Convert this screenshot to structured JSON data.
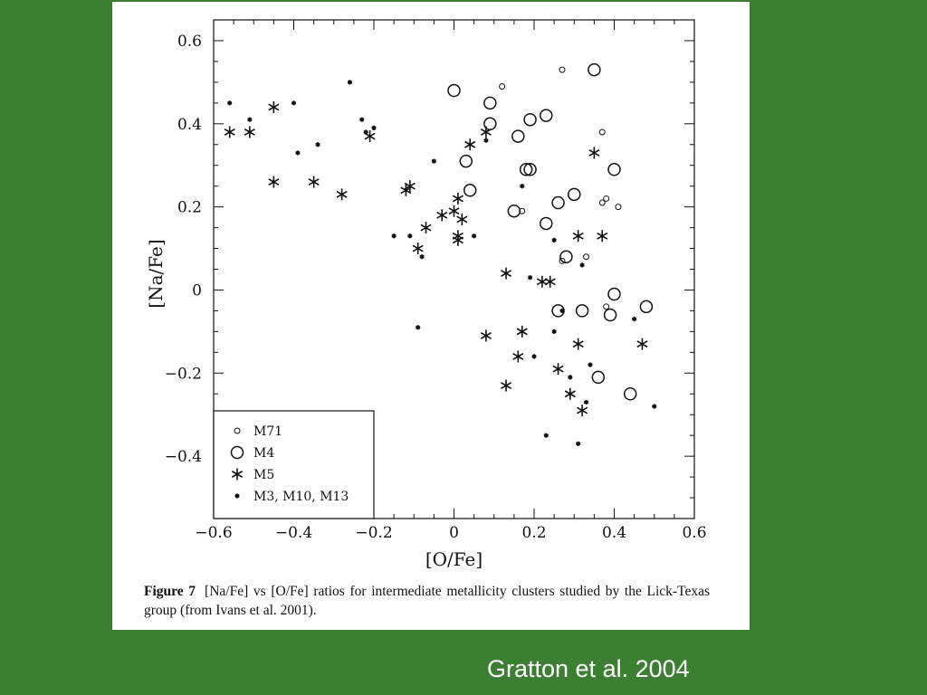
{
  "credit": "Gratton et al. 2004",
  "caption": {
    "label": "Figure 7",
    "text": "[Na/Fe] vs [O/Fe] ratios for intermediate metallicity clusters studied by the Lick-Texas group (from Ivans et al. 2001)."
  },
  "chart_data": {
    "type": "scatter",
    "title": "",
    "xlabel": "[O/Fe]",
    "ylabel": "[Na/Fe]",
    "xlim": [
      -0.6,
      0.6
    ],
    "ylim": [
      -0.55,
      0.65
    ],
    "xticks": [
      "−0.6",
      "−0.4",
      "−0.2",
      "0",
      "0.2",
      "0.4",
      "0.6"
    ],
    "yticks": [
      "−0.4",
      "−0.2",
      "0",
      "0.2",
      "0.4",
      "0.6"
    ],
    "grid": false,
    "legend_position": "bottom-left",
    "series": [
      {
        "name": "M71",
        "marker": "small-circle",
        "points": [
          [
            0.12,
            0.49
          ],
          [
            0.27,
            0.53
          ],
          [
            0.37,
            0.38
          ],
          [
            0.37,
            0.21
          ],
          [
            0.38,
            0.22
          ],
          [
            0.41,
            0.2
          ],
          [
            0.17,
            0.19
          ],
          [
            0.27,
            0.07
          ],
          [
            0.33,
            0.08
          ],
          [
            0.38,
            -0.04
          ]
        ]
      },
      {
        "name": "M4",
        "marker": "large-circle",
        "points": [
          [
            0.0,
            0.48
          ],
          [
            0.35,
            0.53
          ],
          [
            0.09,
            0.45
          ],
          [
            0.09,
            0.4
          ],
          [
            0.19,
            0.41
          ],
          [
            0.23,
            0.42
          ],
          [
            0.16,
            0.37
          ],
          [
            0.18,
            0.29
          ],
          [
            0.19,
            0.29
          ],
          [
            0.4,
            0.29
          ],
          [
            0.03,
            0.31
          ],
          [
            0.04,
            0.24
          ],
          [
            0.15,
            0.19
          ],
          [
            0.26,
            0.21
          ],
          [
            0.3,
            0.23
          ],
          [
            0.23,
            0.16
          ],
          [
            0.28,
            0.08
          ],
          [
            0.26,
            -0.05
          ],
          [
            0.32,
            -0.05
          ],
          [
            0.39,
            -0.06
          ],
          [
            0.4,
            -0.01
          ],
          [
            0.48,
            -0.04
          ],
          [
            0.36,
            -0.21
          ],
          [
            0.44,
            -0.25
          ]
        ]
      },
      {
        "name": "M5",
        "marker": "asterisk",
        "points": [
          [
            -0.56,
            0.38
          ],
          [
            -0.51,
            0.38
          ],
          [
            -0.45,
            0.44
          ],
          [
            -0.45,
            0.26
          ],
          [
            -0.35,
            0.26
          ],
          [
            -0.28,
            0.23
          ],
          [
            -0.21,
            0.37
          ],
          [
            -0.12,
            0.24
          ],
          [
            -0.11,
            0.25
          ],
          [
            -0.09,
            0.1
          ],
          [
            -0.07,
            0.15
          ],
          [
            -0.03,
            0.18
          ],
          [
            0.0,
            0.19
          ],
          [
            0.01,
            0.22
          ],
          [
            0.01,
            0.13
          ],
          [
            0.01,
            0.12
          ],
          [
            0.02,
            0.17
          ],
          [
            0.04,
            0.35
          ],
          [
            0.08,
            0.38
          ],
          [
            0.08,
            -0.11
          ],
          [
            0.13,
            0.04
          ],
          [
            0.13,
            -0.23
          ],
          [
            0.16,
            -0.16
          ],
          [
            0.17,
            -0.1
          ],
          [
            0.22,
            0.02
          ],
          [
            0.24,
            0.02
          ],
          [
            0.26,
            -0.19
          ],
          [
            0.29,
            -0.25
          ],
          [
            0.31,
            -0.13
          ],
          [
            0.31,
            0.13
          ],
          [
            0.32,
            -0.29
          ],
          [
            0.35,
            0.33
          ],
          [
            0.37,
            0.13
          ],
          [
            0.47,
            -0.13
          ]
        ]
      },
      {
        "name": "M3, M10, M13",
        "marker": "dot",
        "points": [
          [
            -0.56,
            0.45
          ],
          [
            -0.51,
            0.41
          ],
          [
            -0.4,
            0.45
          ],
          [
            -0.39,
            0.33
          ],
          [
            -0.34,
            0.35
          ],
          [
            -0.26,
            0.5
          ],
          [
            -0.23,
            0.41
          ],
          [
            -0.22,
            0.38
          ],
          [
            -0.2,
            0.39
          ],
          [
            -0.15,
            0.13
          ],
          [
            -0.11,
            0.13
          ],
          [
            -0.09,
            -0.09
          ],
          [
            -0.08,
            0.08
          ],
          [
            -0.05,
            0.31
          ],
          [
            0.05,
            0.13
          ],
          [
            0.08,
            0.36
          ],
          [
            0.17,
            0.25
          ],
          [
            0.19,
            0.03
          ],
          [
            0.2,
            -0.16
          ],
          [
            0.23,
            -0.35
          ],
          [
            0.25,
            0.12
          ],
          [
            0.25,
            -0.1
          ],
          [
            0.27,
            -0.05
          ],
          [
            0.29,
            -0.21
          ],
          [
            0.31,
            -0.37
          ],
          [
            0.32,
            0.06
          ],
          [
            0.33,
            -0.27
          ],
          [
            0.34,
            -0.18
          ],
          [
            0.45,
            -0.07
          ],
          [
            0.5,
            -0.28
          ]
        ]
      }
    ]
  }
}
